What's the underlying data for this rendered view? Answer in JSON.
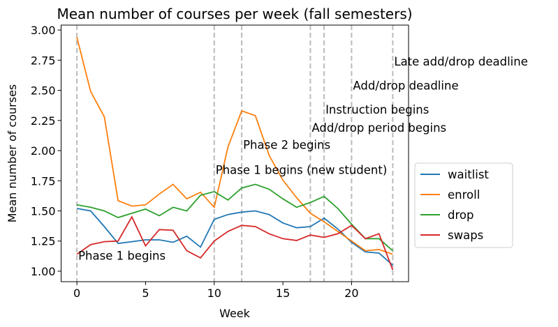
{
  "chart_data": {
    "type": "line",
    "title": "Mean number of courses per week (fall semesters)",
    "xlabel": "Week",
    "ylabel": "Mean number of courses",
    "xlim": [
      -1.15,
      24.15
    ],
    "ylim": [
      0.913,
      3.041
    ],
    "xticks": [
      0,
      5,
      10,
      15,
      20
    ],
    "yticks": [
      1.0,
      1.25,
      1.5,
      1.75,
      2.0,
      2.25,
      2.5,
      2.75,
      3.0
    ],
    "grid": false,
    "legend_position": "center-right (outside plot)",
    "x": [
      0,
      1,
      2,
      3,
      4,
      5,
      6,
      7,
      8,
      9,
      10,
      11,
      12,
      13,
      14,
      15,
      16,
      17,
      18,
      19,
      20,
      21,
      22,
      23
    ],
    "series": [
      {
        "name": "waitlist",
        "color": "#1f77b4",
        "values": [
          1.52,
          1.5,
          1.37,
          1.23,
          1.245,
          1.26,
          1.26,
          1.24,
          1.29,
          1.2,
          1.43,
          1.47,
          1.49,
          1.5,
          1.47,
          1.4,
          1.36,
          1.37,
          1.44,
          1.35,
          1.24,
          1.16,
          1.15,
          1.05
        ]
      },
      {
        "name": "enroll",
        "color": "#ff7f0e",
        "values": [
          2.94,
          2.49,
          2.28,
          1.585,
          1.54,
          1.55,
          1.64,
          1.72,
          1.6,
          1.655,
          1.53,
          2.03,
          2.33,
          2.29,
          1.96,
          1.755,
          1.61,
          1.48,
          1.41,
          1.33,
          1.25,
          1.17,
          1.18,
          1.14
        ]
      },
      {
        "name": "drop",
        "color": "#2ca02c",
        "values": [
          1.55,
          1.53,
          1.5,
          1.445,
          1.48,
          1.515,
          1.46,
          1.53,
          1.5,
          1.63,
          1.66,
          1.59,
          1.69,
          1.72,
          1.68,
          1.6,
          1.53,
          1.57,
          1.62,
          1.52,
          1.39,
          1.27,
          1.27,
          1.17
        ]
      },
      {
        "name": "swaps",
        "color": "#d62728",
        "values": [
          1.14,
          1.22,
          1.245,
          1.25,
          1.45,
          1.21,
          1.345,
          1.34,
          1.17,
          1.11,
          1.25,
          1.33,
          1.38,
          1.37,
          1.31,
          1.27,
          1.255,
          1.3,
          1.28,
          1.31,
          1.38,
          1.27,
          1.31,
          1.01
        ]
      }
    ],
    "vlines": [
      {
        "x": 0,
        "label": "Phase 1 begins",
        "label_y": 1.13
      },
      {
        "x": 10,
        "label": "Phase 1 begins (new student)",
        "label_y": 1.84
      },
      {
        "x": 12,
        "label": "Phase 2 begins",
        "label_y": 2.05
      },
      {
        "x": 17,
        "label": "Add/drop period begins",
        "label_y": 2.19
      },
      {
        "x": 18,
        "label": "Instruction begins",
        "label_y": 2.34
      },
      {
        "x": 20,
        "label": "Add/drop deadline",
        "label_y": 2.54
      },
      {
        "x": 23,
        "label": "Late add/drop deadline",
        "label_y": 2.74
      }
    ],
    "vline_color": "#bbbbbb"
  }
}
